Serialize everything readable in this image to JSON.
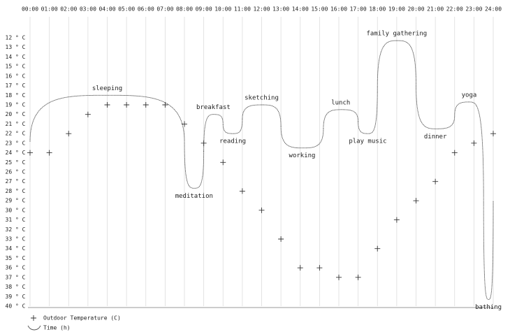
{
  "chart_data": {
    "type": "scatter",
    "xlim": [
      0,
      24
    ],
    "xticks": [
      {
        "value": 0,
        "label": "00:00"
      },
      {
        "value": 1,
        "label": "01:00"
      },
      {
        "value": 2,
        "label": "02:00"
      },
      {
        "value": 3,
        "label": "03:00"
      },
      {
        "value": 4,
        "label": "04:00"
      },
      {
        "value": 5,
        "label": "05:00"
      },
      {
        "value": 6,
        "label": "06:00"
      },
      {
        "value": 7,
        "label": "07:00"
      },
      {
        "value": 8,
        "label": "08:00"
      },
      {
        "value": 9,
        "label": "09:00"
      },
      {
        "value": 10,
        "label": "10:00"
      },
      {
        "value": 11,
        "label": "11:00"
      },
      {
        "value": 12,
        "label": "12:00"
      },
      {
        "value": 13,
        "label": "13:00"
      },
      {
        "value": 14,
        "label": "14:00"
      },
      {
        "value": 15,
        "label": "15:00"
      },
      {
        "value": 16,
        "label": "16:00"
      },
      {
        "value": 17,
        "label": "17:00"
      },
      {
        "value": 18,
        "label": "18:00"
      },
      {
        "value": 19,
        "label": "19:00"
      },
      {
        "value": 20,
        "label": "20:00"
      },
      {
        "value": 21,
        "label": "21:00"
      },
      {
        "value": 22,
        "label": "22:00"
      },
      {
        "value": 23,
        "label": "23:00"
      },
      {
        "value": 24,
        "label": "24:00"
      }
    ],
    "ylim": [
      12,
      40
    ],
    "y_inverted": true,
    "yticks": [
      {
        "value": 12,
        "label": "12 ° C"
      },
      {
        "value": 13,
        "label": "13 ° C"
      },
      {
        "value": 14,
        "label": "14 ° C"
      },
      {
        "value": 15,
        "label": "15 ° C"
      },
      {
        "value": 16,
        "label": "16 ° C"
      },
      {
        "value": 17,
        "label": "17 ° C"
      },
      {
        "value": 18,
        "label": "18 ° C"
      },
      {
        "value": 19,
        "label": "19 ° C"
      },
      {
        "value": 20,
        "label": "20 ° C"
      },
      {
        "value": 21,
        "label": "21 ° C"
      },
      {
        "value": 22,
        "label": "22 ° C"
      },
      {
        "value": 23,
        "label": "23 ° C"
      },
      {
        "value": 24,
        "label": "24 ° C"
      },
      {
        "value": 25,
        "label": "25 ° C"
      },
      {
        "value": 26,
        "label": "26 ° C"
      },
      {
        "value": 27,
        "label": "27 ° C"
      },
      {
        "value": 28,
        "label": "28 ° C"
      },
      {
        "value": 29,
        "label": "29 ° C"
      },
      {
        "value": 30,
        "label": "30 ° C"
      },
      {
        "value": 31,
        "label": "31 ° C"
      },
      {
        "value": 32,
        "label": "32 ° C"
      },
      {
        "value": 33,
        "label": "33 ° C"
      },
      {
        "value": 34,
        "label": "34 ° C"
      },
      {
        "value": 35,
        "label": "35 ° C"
      },
      {
        "value": 36,
        "label": "36 ° C"
      },
      {
        "value": 37,
        "label": "37 ° C"
      },
      {
        "value": 38,
        "label": "38 ° C"
      },
      {
        "value": 39,
        "label": "39 ° C"
      },
      {
        "value": 40,
        "label": "40 ° C"
      }
    ],
    "grid": true,
    "series": [
      {
        "name": "Outdoor Temperature (C)",
        "color": "#333333",
        "x": [
          0,
          1,
          2,
          3,
          4,
          5,
          6,
          7,
          8,
          9,
          10,
          11,
          12,
          13,
          14,
          15,
          16,
          17,
          18,
          19,
          20,
          21,
          22,
          23,
          24
        ],
        "values": [
          24,
          24,
          22,
          20,
          19,
          19,
          19,
          19,
          21,
          23,
          25,
          28,
          30,
          33,
          36,
          36,
          37,
          37,
          34,
          31,
          29,
          27,
          24,
          23,
          22
        ]
      }
    ],
    "activities": {
      "name": "Time (h)",
      "color": "#555555",
      "items": [
        {
          "label": "sleeping",
          "start": 0,
          "end": 8,
          "level": 18
        },
        {
          "label": "meditation",
          "start": 8,
          "end": 9,
          "level": 27.7
        },
        {
          "label": "breakfast",
          "start": 9,
          "end": 10,
          "level": 20
        },
        {
          "label": "reading",
          "start": 10,
          "end": 11,
          "level": 22
        },
        {
          "label": "sketching",
          "start": 11,
          "end": 13,
          "level": 19
        },
        {
          "label": "working",
          "start": 13,
          "end": 15.2,
          "level": 23.5
        },
        {
          "label": "lunch",
          "start": 15.2,
          "end": 17,
          "level": 19.5
        },
        {
          "label": "play music",
          "start": 17,
          "end": 18,
          "level": 22
        },
        {
          "label": "family gathering",
          "start": 18,
          "end": 20,
          "level": 12.3
        },
        {
          "label": "dinner",
          "start": 20,
          "end": 22,
          "level": 21.5
        },
        {
          "label": "yoga",
          "start": 22,
          "end": 23.5,
          "level": 18.7
        },
        {
          "label": "bathing",
          "start": 23.5,
          "end": 24,
          "level": 39.3
        }
      ]
    }
  }
}
